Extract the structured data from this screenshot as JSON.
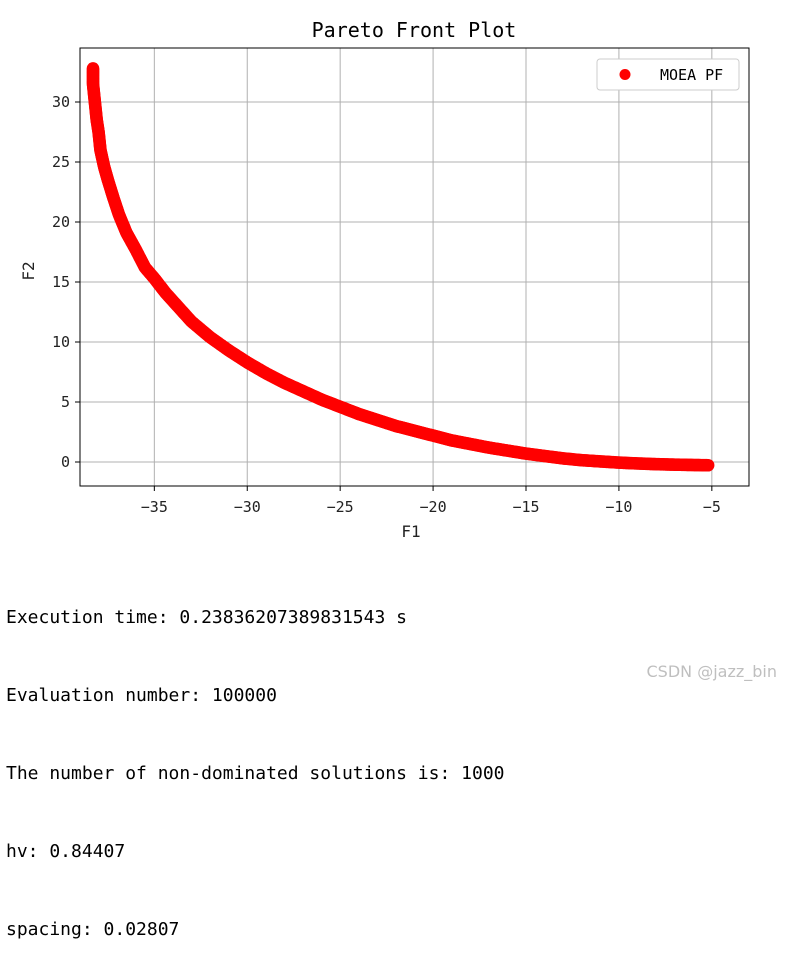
{
  "chart_data": {
    "type": "scatter",
    "title": "Pareto Front Plot",
    "xlabel": "F1",
    "ylabel": "F2",
    "xlim": [
      -39,
      -3
    ],
    "ylim": [
      -2,
      34.5
    ],
    "xticks": [
      -35,
      -30,
      -25,
      -20,
      -15,
      -10,
      -5
    ],
    "yticks": [
      0,
      5,
      10,
      15,
      20,
      25,
      30
    ],
    "grid": true,
    "legend": "top-right",
    "series": [
      {
        "name": "MOEA PF",
        "color": "#ff0000",
        "marker": "circle",
        "points": [
          [
            -38.3,
            32.8
          ],
          [
            -38.3,
            31.5
          ],
          [
            -38.2,
            30.0
          ],
          [
            -38.1,
            28.5
          ],
          [
            -38.0,
            27.5
          ],
          [
            -37.9,
            26.0
          ],
          [
            -37.7,
            24.6
          ],
          [
            -37.5,
            23.5
          ],
          [
            -37.2,
            22.0
          ],
          [
            -36.9,
            20.6
          ],
          [
            -36.5,
            19.1
          ],
          [
            -36.0,
            17.7
          ],
          [
            -35.5,
            16.2
          ],
          [
            -35.0,
            15.3
          ],
          [
            -34.4,
            14.1
          ],
          [
            -33.7,
            12.9
          ],
          [
            -33.0,
            11.7
          ],
          [
            -32.0,
            10.4
          ],
          [
            -31.0,
            9.3
          ],
          [
            -30.0,
            8.3
          ],
          [
            -29.0,
            7.4
          ],
          [
            -28.0,
            6.6
          ],
          [
            -27.0,
            5.9
          ],
          [
            -26.0,
            5.2
          ],
          [
            -25.0,
            4.6
          ],
          [
            -24.0,
            4.0
          ],
          [
            -23.0,
            3.5
          ],
          [
            -22.0,
            3.0
          ],
          [
            -21.0,
            2.6
          ],
          [
            -20.0,
            2.2
          ],
          [
            -19.0,
            1.8
          ],
          [
            -18.0,
            1.5
          ],
          [
            -17.0,
            1.2
          ],
          [
            -16.0,
            0.95
          ],
          [
            -15.0,
            0.7
          ],
          [
            -14.0,
            0.5
          ],
          [
            -13.0,
            0.3
          ],
          [
            -12.0,
            0.15
          ],
          [
            -11.0,
            0.05
          ],
          [
            -10.0,
            -0.05
          ],
          [
            -9.0,
            -0.12
          ],
          [
            -8.0,
            -0.18
          ],
          [
            -7.0,
            -0.22
          ],
          [
            -6.0,
            -0.25
          ],
          [
            -5.2,
            -0.27
          ]
        ]
      }
    ]
  },
  "console": {
    "line1": "Execution time: 0.23836207389831543 s",
    "line2": "Evaluation number: 100000",
    "line3": "The number of non-dominated solutions is: 1000",
    "line4": "hv: 0.84407",
    "line5": "spacing: 0.02807"
  },
  "watermark": "CSDN @jazz_bin"
}
